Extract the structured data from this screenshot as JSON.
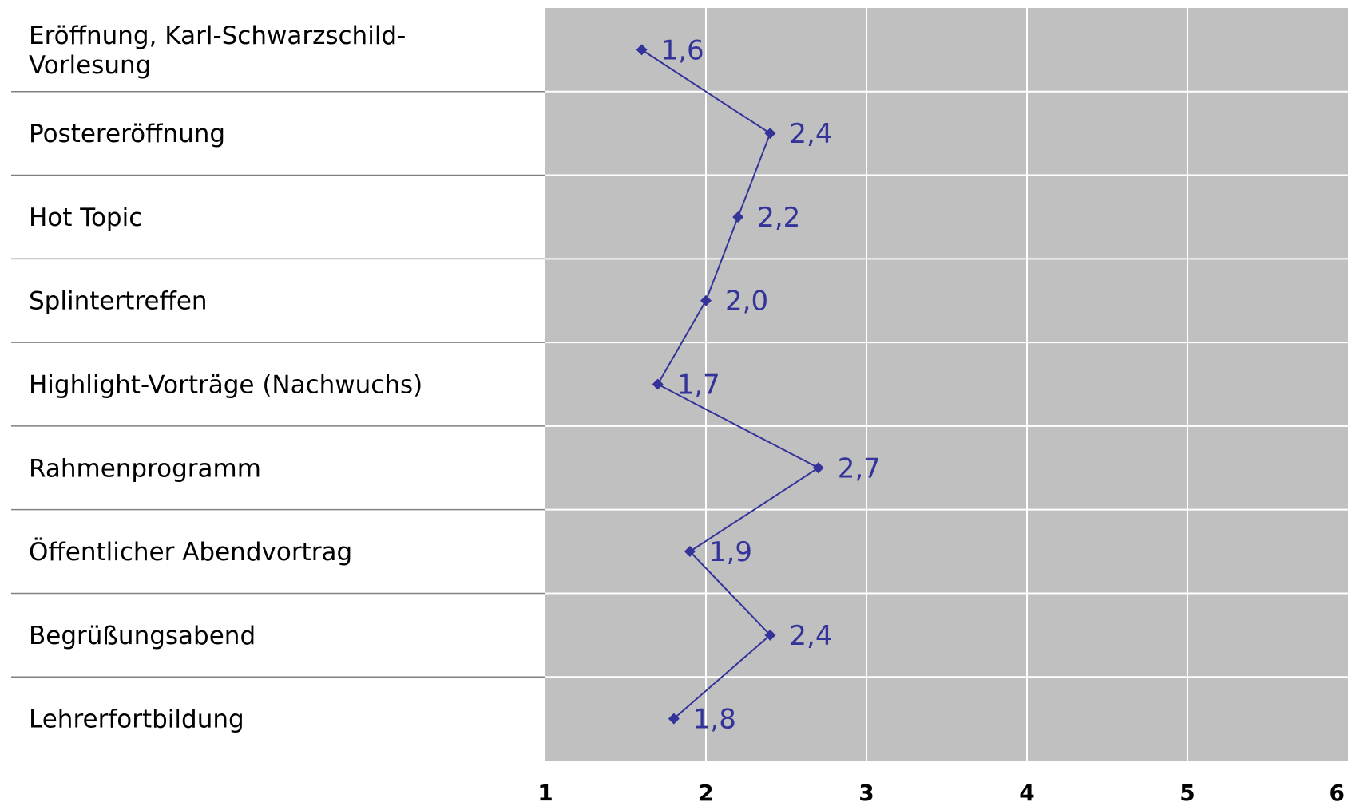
{
  "chart_data": {
    "type": "line",
    "orientation": "horizontal-values",
    "title": "",
    "xlabel": "",
    "ylabel": "",
    "categories": [
      [
        "Eröffnung, Karl-Schwarzschild-",
        "Vorlesung"
      ],
      [
        "Postereröffnung"
      ],
      [
        "Hot Topic"
      ],
      [
        "Splintertreffen"
      ],
      [
        "Highlight-Vorträge (Nachwuchs)"
      ],
      [
        "Rahmenprogramm"
      ],
      [
        "Öffentlicher Abendvortrag"
      ],
      [
        "Begrüßungsabend"
      ],
      [
        "Lehrerfortbildung"
      ]
    ],
    "values": [
      1.6,
      2.4,
      2.2,
      2.0,
      1.7,
      2.7,
      1.9,
      2.4,
      1.8
    ],
    "value_labels": [
      "1,6",
      "2,4",
      "2,2",
      "2,0",
      "1,7",
      "2,7",
      "1,9",
      "2,4",
      "1,8"
    ],
    "xlim": [
      1,
      6
    ],
    "x_ticks": [
      1,
      2,
      3,
      4,
      5,
      6
    ],
    "x_tick_labels": [
      "1",
      "2",
      "3",
      "4",
      "5",
      "6"
    ],
    "grid": true,
    "legend": "none",
    "colors": {
      "plot_background": "#c0c0c0",
      "grid": "#ffffff",
      "series": "#333399",
      "separator": "#808080"
    }
  }
}
